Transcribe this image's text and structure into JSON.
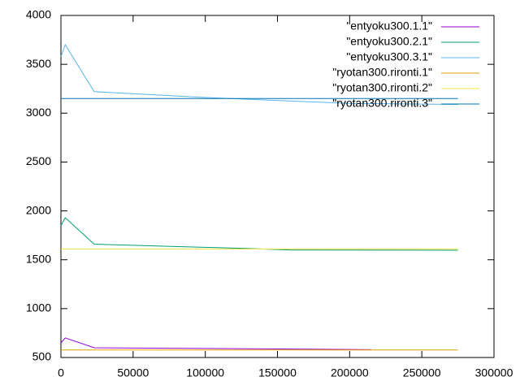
{
  "chart_data": {
    "type": "line",
    "xlim": [
      0,
      300000
    ],
    "xticks": [
      0,
      50000,
      100000,
      150000,
      200000,
      250000,
      300000
    ],
    "ylim": [
      500,
      4000
    ],
    "yticks": [
      500,
      1000,
      1500,
      2000,
      2500,
      3000,
      3500,
      4000
    ],
    "grid": false,
    "legend": "top-right",
    "series": [
      {
        "name": "\"entyoku300.1.1\"",
        "color": "#9400d3",
        "x": [
          0,
          3000,
          23000,
          130000,
          215000
        ],
        "values": [
          650,
          700,
          600,
          590,
          580
        ]
      },
      {
        "name": "\"entyoku300.2.1\"",
        "color": "#009e73",
        "x": [
          0,
          3000,
          23000,
          130000,
          160000,
          275000
        ],
        "values": [
          1850,
          1930,
          1660,
          1615,
          1600,
          1597
        ]
      },
      {
        "name": "\"entyoku300.3.1\"",
        "color": "#56b4e9",
        "x": [
          0,
          3000,
          23000,
          100000,
          200000,
          275000
        ],
        "values": [
          3580,
          3700,
          3220,
          3160,
          3100,
          3090
        ]
      },
      {
        "name": "\"ryotan300.rironti.1\"",
        "color": "#e69f00",
        "x": [
          0,
          275000
        ],
        "values": [
          577,
          577
        ]
      },
      {
        "name": "\"ryotan300.rironti.2\"",
        "color": "#f0e442",
        "x": [
          0,
          275000
        ],
        "values": [
          1610,
          1610
        ]
      },
      {
        "name": "\"ryotan300.rironti.3\"",
        "color": "#0072b2",
        "x": [
          0,
          275000
        ],
        "values": [
          3150,
          3150
        ]
      }
    ]
  }
}
